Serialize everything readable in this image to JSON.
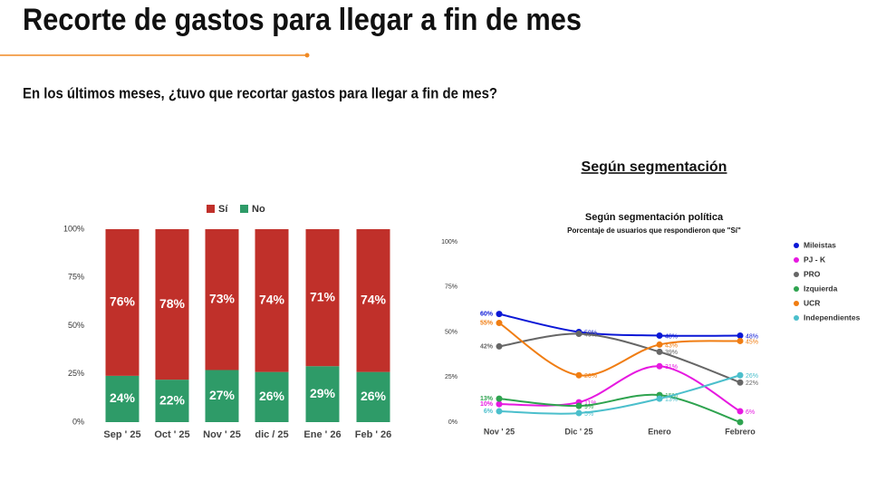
{
  "header": {
    "title": "Recorte de gastos para llegar a fin de mes",
    "subtitle": "En los últimos meses, ¿tuvo que recortar gastos para llegar a fin de mes?"
  },
  "chart_data": [
    {
      "type": "stacked_bar",
      "categories": [
        "Sep ' 25",
        "Oct ' 25",
        "Nov ' 25",
        "dic / 25",
        "Ene ' 26",
        "Feb ' 26"
      ],
      "series": [
        {
          "name": "Sí",
          "color": "#c0302a",
          "values": [
            76,
            78,
            73,
            74,
            71,
            74
          ],
          "value_labels": [
            "76%",
            "78%",
            "73%",
            "74%",
            "71%",
            "74%"
          ]
        },
        {
          "name": "No",
          "color": "#2e9b68",
          "values": [
            24,
            22,
            27,
            26,
            29,
            26
          ],
          "value_labels": [
            "24%",
            "22%",
            "27%",
            "26%",
            "29%",
            "26%"
          ]
        }
      ],
      "ylim": [
        0,
        100
      ],
      "yticks": [
        {
          "value": 0,
          "label": "0%"
        },
        {
          "value": 25,
          "label": "25%"
        },
        {
          "value": 50,
          "label": "50%"
        },
        {
          "value": 75,
          "label": "75%"
        },
        {
          "value": 100,
          "label": "100%"
        }
      ],
      "legend": "top"
    },
    {
      "type": "line",
      "heading": "Según segmentación",
      "title": "Según segmentación política",
      "subtitle": "Porcentaje de  usuarios que respondieron que  \"Sí\"",
      "categories": [
        "Nov ' 25",
        "Dic ' 25",
        "Enero",
        "Febrero"
      ],
      "series": [
        {
          "name": "Mileistas",
          "color": "#0a17d6",
          "values": [
            60,
            50,
            48,
            48
          ],
          "value_labels": [
            "60%",
            "50%",
            "48%",
            "48%"
          ]
        },
        {
          "name": "PJ - K",
          "color": "#e619e0",
          "values": [
            10,
            11,
            31,
            6
          ],
          "value_labels": [
            "10%",
            "11%",
            "31%",
            "6%"
          ]
        },
        {
          "name": "PRO",
          "color": "#666666",
          "values": [
            42,
            49,
            39,
            22
          ],
          "value_labels": [
            "42%",
            "49%",
            "39%",
            "22%"
          ]
        },
        {
          "name": "Izquierda",
          "color": "#2ea34f",
          "values": [
            13,
            9,
            15,
            0
          ],
          "value_labels": [
            "13%",
            "9%",
            "15%",
            null
          ]
        },
        {
          "name": "UCR",
          "color": "#f07d12",
          "values": [
            55,
            26,
            43,
            45
          ],
          "value_labels": [
            "55%",
            "26%",
            "43%",
            "45%"
          ]
        },
        {
          "name": "Independientes",
          "color": "#4bbfcc",
          "values": [
            6,
            5,
            13,
            26
          ],
          "value_labels": [
            "6%",
            "5%",
            "13%",
            "26%"
          ]
        }
      ],
      "ylim": [
        0,
        100
      ],
      "yticks": [
        {
          "value": 0,
          "label": "0%"
        },
        {
          "value": 25,
          "label": "25%"
        },
        {
          "value": 50,
          "label": "50%"
        },
        {
          "value": 75,
          "label": "75%"
        },
        {
          "value": 100,
          "label": "100%"
        }
      ],
      "legend": "right"
    }
  ]
}
